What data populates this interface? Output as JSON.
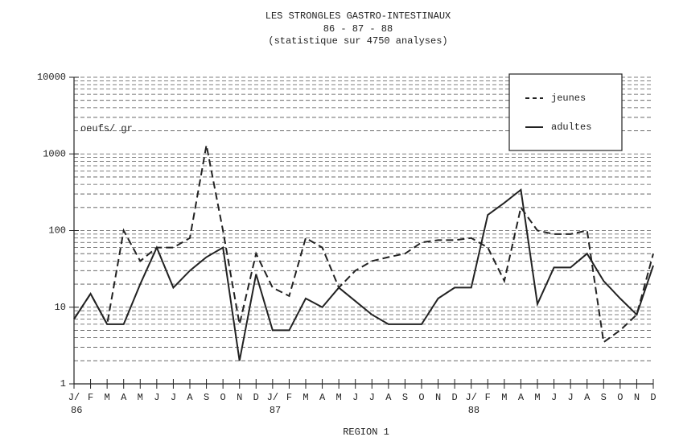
{
  "chart_data": {
    "type": "line",
    "title": "LES STRONGLES GASTRO-INTESTINAUX",
    "subtitle": "86 - 87 - 88",
    "note": "(statistique sur 4750 analyses)",
    "ylabel": "oeufs/ gr",
    "xlabel": "REGION 1",
    "log_scale": true,
    "grid": true,
    "legend": "upper right",
    "categories": [
      "J/",
      "F",
      "M",
      "A",
      "M",
      "J",
      "J",
      "A",
      "S",
      "O",
      "N",
      "D",
      "J/",
      "F",
      "M",
      "A",
      "M",
      "J",
      "J",
      "A",
      "S",
      "O",
      "N",
      "D",
      "J/",
      "F",
      "M",
      "A",
      "M",
      "J",
      "J",
      "A",
      "S",
      "O",
      "N",
      "D"
    ],
    "year_labels": [
      "86",
      "87",
      "88"
    ],
    "ylim": [
      1,
      10000
    ],
    "yticks": [
      1,
      10,
      100,
      1000,
      10000
    ],
    "series": [
      {
        "name": "jeunes",
        "color": "#222",
        "line_style": "dashed",
        "values": [
          7,
          15,
          6,
          100,
          40,
          60,
          60,
          80,
          1300,
          100,
          6,
          50,
          18,
          14,
          80,
          60,
          18,
          30,
          40,
          45,
          50,
          70,
          75,
          75,
          80,
          60,
          22,
          200,
          100,
          90,
          90,
          100,
          3.5,
          5,
          8,
          50
        ]
      },
      {
        "name": "adultes",
        "color": "#222",
        "line_style": "solid",
        "values": [
          7,
          15,
          6,
          6,
          20,
          60,
          18,
          30,
          45,
          60,
          2,
          27,
          5,
          5,
          13,
          10,
          18,
          12,
          8,
          6,
          6,
          6,
          13,
          18,
          18,
          160,
          230,
          340,
          11,
          33,
          33,
          50,
          22,
          13,
          8,
          35
        ]
      }
    ]
  }
}
